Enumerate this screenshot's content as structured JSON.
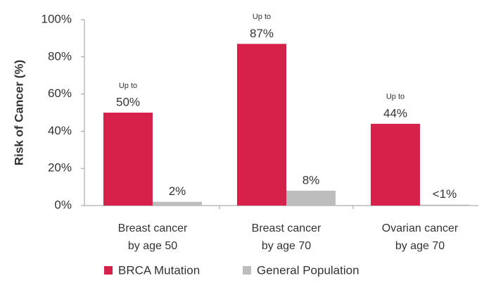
{
  "chart_data": {
    "type": "bar",
    "ylabel": "Risk of Cancer (%)",
    "categories": [
      [
        "Breast cancer",
        "by age 50"
      ],
      [
        "Breast cancer",
        "by age 70"
      ],
      [
        "Ovarian cancer",
        "by age 70"
      ]
    ],
    "series": [
      {
        "name": "BRCA Mutation",
        "color": "#d6224a",
        "values": [
          50,
          87,
          44
        ],
        "value_labels": [
          "50%",
          "87%",
          "44%"
        ],
        "annotations": [
          "Up to",
          "Up to",
          "Up to"
        ]
      },
      {
        "name": "General Population",
        "color": "#bdbdbd",
        "values": [
          2,
          8,
          0.5
        ],
        "value_labels": [
          "2%",
          "8%",
          "<1%"
        ]
      }
    ],
    "ylim": [
      0,
      100
    ],
    "yticks": [
      {
        "value": 0,
        "label": "0%"
      },
      {
        "value": 20,
        "label": "20%"
      },
      {
        "value": 40,
        "label": "40%"
      },
      {
        "value": 60,
        "label": "60%"
      },
      {
        "value": 80,
        "label": "80%"
      },
      {
        "value": 100,
        "label": "100%"
      }
    ],
    "grid": false
  }
}
